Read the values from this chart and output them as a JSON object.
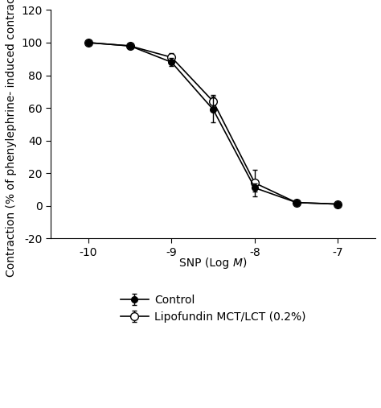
{
  "x": [
    -10,
    -9.5,
    -9,
    -8.5,
    -8,
    -7.5,
    -7
  ],
  "control_y": [
    100,
    98,
    88,
    59,
    11,
    2,
    1
  ],
  "control_yerr": [
    0.5,
    1.0,
    2.5,
    8.0,
    2.5,
    1.0,
    0.5
  ],
  "lipofundin_y": [
    100,
    98,
    91,
    64,
    14,
    2,
    1
  ],
  "lipofundin_yerr": [
    0.5,
    1.0,
    2.5,
    4.0,
    8.0,
    1.5,
    0.5
  ],
  "ylabel": "Contraction (% of phenylephrine- induced contraction)",
  "xlim": [
    -10.45,
    -6.55
  ],
  "ylim": [
    -20,
    120
  ],
  "xticks": [
    -10,
    -9,
    -8,
    -7
  ],
  "yticks": [
    -20,
    0,
    20,
    40,
    60,
    80,
    100,
    120
  ],
  "legend_control": "Control",
  "legend_lipofundin": "Lipofundin MCT/LCT (0.2%)",
  "color": "#000000",
  "background_color": "#ffffff",
  "fontsize_axis_label": 10,
  "fontsize_ticks": 10,
  "fontsize_legend": 10
}
